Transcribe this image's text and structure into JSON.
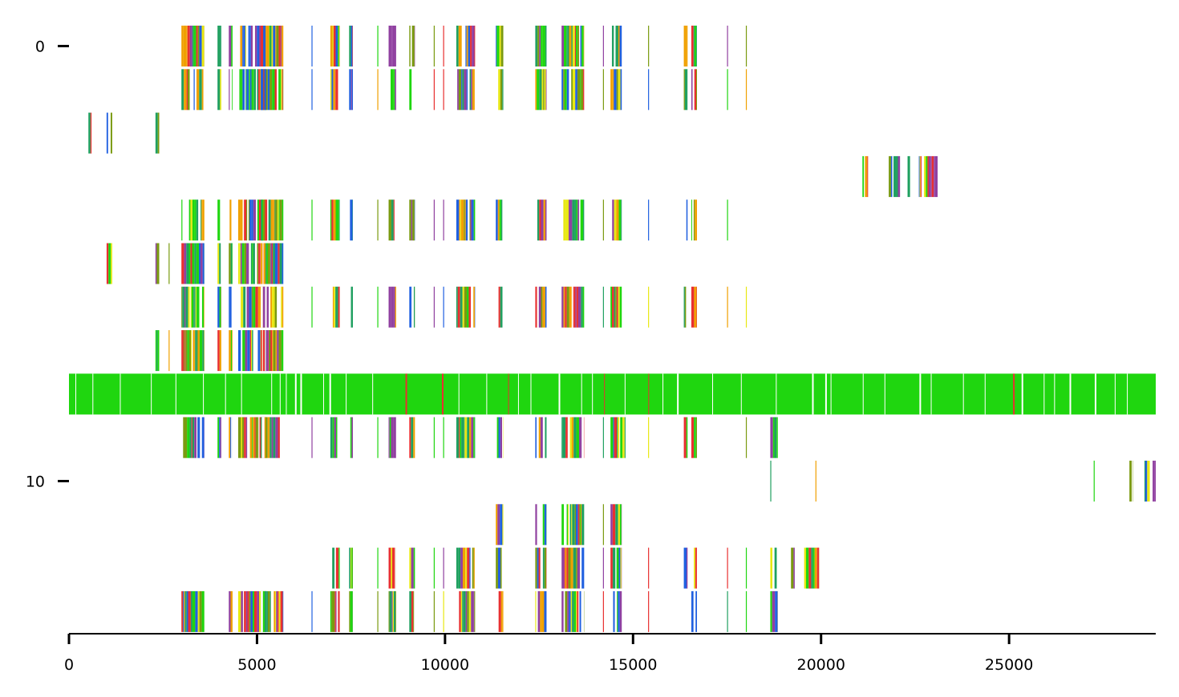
{
  "chart_data": {
    "type": "heatmap",
    "description_hidden": false,
    "title": "",
    "xlabel": "",
    "ylabel": "",
    "xlim": [
      0,
      28900
    ],
    "ylim": [
      -0.5,
      13.5
    ],
    "x_ticks": [
      {
        "value": 0,
        "label": "0"
      },
      {
        "value": 5000,
        "label": "5000"
      },
      {
        "value": 10000,
        "label": "10000"
      },
      {
        "value": 15000,
        "label": "15000"
      },
      {
        "value": 20000,
        "label": "20000"
      },
      {
        "value": 25000,
        "label": "25000"
      }
    ],
    "y_ticks": [
      {
        "value": 0,
        "label": "0"
      },
      {
        "value": 10,
        "label": "10"
      }
    ],
    "grid": false,
    "colors": [
      "#1fd60f",
      "#e8e812",
      "#e83030",
      "#2060e0",
      "#9040a0",
      "#f0a000",
      "#20a060",
      "#7a9a10"
    ],
    "rows": [
      {
        "row": 0,
        "segments": [
          [
            2990,
            3600,
            "mixed"
          ],
          [
            3950,
            4050,
            "mixed"
          ],
          [
            4250,
            4350,
            "mixed"
          ],
          [
            4500,
            5250,
            "mixed"
          ],
          [
            5100,
            5700,
            "mixed"
          ],
          [
            6450,
            6500,
            "thin"
          ],
          [
            6950,
            7200,
            "mixed"
          ],
          [
            7450,
            7550,
            "mixed"
          ],
          [
            8200,
            8250,
            "thin"
          ],
          [
            8500,
            8700,
            "purple"
          ],
          [
            9050,
            9200,
            "mixed"
          ],
          [
            9700,
            9750,
            "thin"
          ],
          [
            9950,
            10000,
            "thin"
          ],
          [
            10300,
            10800,
            "mixed"
          ],
          [
            11350,
            11550,
            "mixed"
          ],
          [
            12400,
            12700,
            "mixed"
          ],
          [
            13100,
            13700,
            "mixed"
          ],
          [
            14200,
            14250,
            "thin"
          ],
          [
            14400,
            14700,
            "mixed"
          ],
          [
            15400,
            15450,
            "thin"
          ],
          [
            16350,
            16450,
            "mixed"
          ],
          [
            16550,
            16700,
            "mixed"
          ],
          [
            17500,
            17550,
            "thin"
          ],
          [
            18000,
            18050,
            "thin"
          ]
        ]
      },
      {
        "row": 1,
        "segments": [
          [
            2990,
            3600,
            "mixed"
          ],
          [
            3950,
            4050,
            "mixed"
          ],
          [
            4250,
            4350,
            "mixed"
          ],
          [
            4500,
            5250,
            "mixed"
          ],
          [
            5100,
            5700,
            "mixed"
          ],
          [
            6450,
            6500,
            "thin"
          ],
          [
            6950,
            7200,
            "mixed"
          ],
          [
            7450,
            7550,
            "mixed"
          ],
          [
            8200,
            8250,
            "thin"
          ],
          [
            8500,
            8700,
            "mixed"
          ],
          [
            9050,
            9200,
            "mixed"
          ],
          [
            9700,
            9750,
            "thin"
          ],
          [
            9950,
            10000,
            "thin"
          ],
          [
            10300,
            10800,
            "mixed"
          ],
          [
            11350,
            11550,
            "mixed"
          ],
          [
            12400,
            12700,
            "mixed"
          ],
          [
            13100,
            13700,
            "mixed"
          ],
          [
            14200,
            14250,
            "thin"
          ],
          [
            14400,
            14700,
            "mixed"
          ],
          [
            15400,
            15450,
            "thin"
          ],
          [
            16350,
            16450,
            "mixed"
          ],
          [
            16550,
            16700,
            "mixed"
          ],
          [
            17500,
            17550,
            "thin"
          ],
          [
            18000,
            18050,
            "thin"
          ]
        ]
      },
      {
        "row": 2,
        "segments": [
          [
            450,
            600,
            "mixed"
          ],
          [
            1000,
            1150,
            "mixed"
          ],
          [
            2300,
            2400,
            "mixed"
          ]
        ]
      },
      {
        "row": 3,
        "segments": [
          [
            21100,
            21250,
            "mixed"
          ],
          [
            21800,
            22100,
            "mixed"
          ],
          [
            22300,
            22400,
            "mixed"
          ],
          [
            22600,
            23100,
            "mixed"
          ]
        ]
      },
      {
        "row": 4,
        "segments": [
          [
            2990,
            3600,
            "mixed"
          ],
          [
            3950,
            4050,
            "mixed"
          ],
          [
            4250,
            4350,
            "mixed"
          ],
          [
            4500,
            5250,
            "mixed"
          ],
          [
            5100,
            5700,
            "mixed"
          ],
          [
            6450,
            6500,
            "thin"
          ],
          [
            6950,
            7200,
            "mixed"
          ],
          [
            7450,
            7550,
            "mixed"
          ],
          [
            8200,
            8250,
            "thin"
          ],
          [
            8500,
            8700,
            "mixed"
          ],
          [
            9050,
            9200,
            "mixed"
          ],
          [
            9700,
            9750,
            "thin"
          ],
          [
            9950,
            10000,
            "thin"
          ],
          [
            10300,
            10800,
            "mixed"
          ],
          [
            11350,
            11550,
            "mixed"
          ],
          [
            12400,
            12700,
            "mixed"
          ],
          [
            13100,
            13700,
            "mixed"
          ],
          [
            14200,
            14250,
            "thin"
          ],
          [
            14400,
            14700,
            "mixed"
          ],
          [
            15400,
            15450,
            "thin"
          ],
          [
            16350,
            16450,
            "mixed"
          ],
          [
            16550,
            16700,
            "mixed"
          ],
          [
            17500,
            17550,
            "thin"
          ]
        ]
      },
      {
        "row": 5,
        "segments": [
          [
            1000,
            1150,
            "mixed"
          ],
          [
            2300,
            2400,
            "mixed"
          ],
          [
            2650,
            2700,
            "thin"
          ],
          [
            2990,
            3600,
            "mixed"
          ],
          [
            3950,
            4050,
            "mixed"
          ],
          [
            4250,
            4350,
            "mixed"
          ],
          [
            4500,
            5250,
            "mixed"
          ],
          [
            5100,
            5700,
            "mixed"
          ]
        ]
      },
      {
        "row": 6,
        "segments": [
          [
            2990,
            3600,
            "mixed"
          ],
          [
            3950,
            4050,
            "mixed"
          ],
          [
            4250,
            4350,
            "mixed"
          ],
          [
            4500,
            5250,
            "mixed"
          ],
          [
            5100,
            5700,
            "mixed"
          ],
          [
            6450,
            6500,
            "thin"
          ],
          [
            6950,
            7200,
            "mixed"
          ],
          [
            7450,
            7550,
            "mixed"
          ],
          [
            8200,
            8250,
            "thin"
          ],
          [
            8500,
            8700,
            "purple"
          ],
          [
            9050,
            9200,
            "mixed"
          ],
          [
            9700,
            9750,
            "thin"
          ],
          [
            9950,
            10000,
            "thin"
          ],
          [
            10300,
            10800,
            "mixed"
          ],
          [
            11350,
            11550,
            "mixed"
          ],
          [
            12400,
            12700,
            "mixed"
          ],
          [
            13100,
            13700,
            "mixed"
          ],
          [
            14200,
            14250,
            "thin"
          ],
          [
            14400,
            14700,
            "mixed"
          ],
          [
            15400,
            15450,
            "thin"
          ],
          [
            16350,
            16450,
            "mixed"
          ],
          [
            16550,
            16700,
            "mixed"
          ],
          [
            17500,
            17550,
            "thin"
          ],
          [
            18000,
            18050,
            "thin"
          ]
        ]
      },
      {
        "row": 7,
        "segments": [
          [
            2300,
            2400,
            "mixed"
          ],
          [
            2650,
            2700,
            "thin"
          ],
          [
            2990,
            3600,
            "mixed"
          ],
          [
            3950,
            4050,
            "mixed"
          ],
          [
            4250,
            4350,
            "mixed"
          ],
          [
            4500,
            5250,
            "mixed"
          ],
          [
            5100,
            5700,
            "mixed"
          ]
        ]
      },
      {
        "row": 8,
        "segments": [
          [
            0,
            28900,
            "green"
          ]
        ]
      },
      {
        "row": 9,
        "segments": [
          [
            2990,
            3600,
            "mixed"
          ],
          [
            3950,
            4050,
            "mixed"
          ],
          [
            4250,
            4350,
            "mixed"
          ],
          [
            4500,
            5250,
            "mixed"
          ],
          [
            5100,
            5700,
            "mixed"
          ],
          [
            6450,
            6500,
            "thin"
          ],
          [
            6950,
            7200,
            "mixed"
          ],
          [
            7450,
            7550,
            "mixed"
          ],
          [
            8200,
            8250,
            "thin"
          ],
          [
            8500,
            8700,
            "purple"
          ],
          [
            9050,
            9200,
            "mixed"
          ],
          [
            9700,
            9750,
            "thin"
          ],
          [
            9950,
            10000,
            "thin"
          ],
          [
            10300,
            10800,
            "mixed"
          ],
          [
            11350,
            11550,
            "mixed"
          ],
          [
            12400,
            12700,
            "mixed"
          ],
          [
            13100,
            13700,
            "mixed"
          ],
          [
            14200,
            14250,
            "thin"
          ],
          [
            14400,
            14800,
            "mixed"
          ],
          [
            15400,
            15450,
            "thin"
          ],
          [
            16350,
            16450,
            "mixed"
          ],
          [
            16550,
            16700,
            "mixed"
          ],
          [
            18000,
            18050,
            "thin"
          ],
          [
            18650,
            18850,
            "mixed"
          ]
        ]
      },
      {
        "row": 10,
        "segments": [
          [
            18650,
            18700,
            "thin"
          ],
          [
            19850,
            19900,
            "thin"
          ],
          [
            27250,
            27300,
            "thin"
          ],
          [
            28200,
            28300,
            "mixed"
          ],
          [
            28600,
            28900,
            "mixed"
          ]
        ]
      },
      {
        "row": 11,
        "segments": [
          [
            11350,
            11550,
            "mixed"
          ],
          [
            12400,
            12700,
            "mixed"
          ],
          [
            13100,
            13700,
            "mixed"
          ],
          [
            14200,
            14250,
            "thin"
          ],
          [
            14400,
            14700,
            "mixed"
          ]
        ]
      },
      {
        "row": 12,
        "segments": [
          [
            6950,
            7200,
            "mixed"
          ],
          [
            7450,
            7550,
            "mixed"
          ],
          [
            8200,
            8250,
            "thin"
          ],
          [
            8500,
            8700,
            "mixed"
          ],
          [
            9050,
            9200,
            "mixed"
          ],
          [
            9700,
            9750,
            "thin"
          ],
          [
            9950,
            10000,
            "thin"
          ],
          [
            10300,
            10800,
            "mixed"
          ],
          [
            11350,
            11550,
            "mixed"
          ],
          [
            12400,
            12700,
            "mixed"
          ],
          [
            13100,
            13700,
            "mixed"
          ],
          [
            14200,
            14250,
            "thin"
          ],
          [
            14400,
            14700,
            "mixed"
          ],
          [
            15400,
            15450,
            "thin"
          ],
          [
            16350,
            16450,
            "mixed"
          ],
          [
            16550,
            16700,
            "mixed"
          ],
          [
            17500,
            17550,
            "thin"
          ],
          [
            18000,
            18050,
            "thin"
          ],
          [
            18650,
            18850,
            "mixed"
          ],
          [
            19200,
            19300,
            "mixed"
          ],
          [
            19550,
            19950,
            "mixed"
          ]
        ]
      },
      {
        "row": 13,
        "segments": [
          [
            2990,
            3600,
            "mixed"
          ],
          [
            3950,
            4050,
            "mixed"
          ],
          [
            4250,
            4350,
            "mixed"
          ],
          [
            4500,
            5250,
            "mixed"
          ],
          [
            5100,
            5700,
            "mixed"
          ],
          [
            6450,
            6500,
            "thin"
          ],
          [
            6950,
            7200,
            "mixed"
          ],
          [
            7450,
            7550,
            "mixed"
          ],
          [
            8200,
            8250,
            "thin"
          ],
          [
            8500,
            8700,
            "mixed"
          ],
          [
            9050,
            9200,
            "mixed"
          ],
          [
            9700,
            9750,
            "thin"
          ],
          [
            9950,
            10000,
            "thin"
          ],
          [
            10300,
            10800,
            "mixed"
          ],
          [
            11350,
            11550,
            "mixed"
          ],
          [
            12400,
            12700,
            "mixed"
          ],
          [
            13100,
            13700,
            "mixed"
          ],
          [
            14200,
            14250,
            "thin"
          ],
          [
            14400,
            14700,
            "mixed"
          ],
          [
            15400,
            15450,
            "thin"
          ],
          [
            16350,
            16450,
            "mixed"
          ],
          [
            16550,
            16700,
            "mixed"
          ],
          [
            17500,
            17550,
            "thin"
          ],
          [
            18000,
            18050,
            "thin"
          ],
          [
            18650,
            18850,
            "mixed"
          ]
        ]
      }
    ]
  }
}
